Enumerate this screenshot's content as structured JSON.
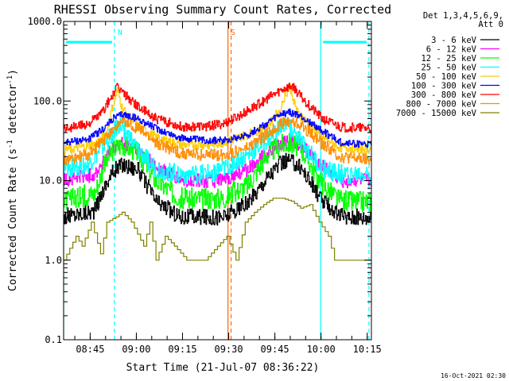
{
  "chart_data": {
    "type": "line",
    "title": "RHESSI Observing Summary Count Rates, Corrected",
    "xlabel": "Start Time (21-Jul-07 08:36:22)",
    "ylabel": "Corrected Count Rate (s^-1 detector^-1)",
    "ylabel_parts": [
      "Corrected Count Rate (s",
      "-1",
      " detector",
      "-1",
      ")"
    ],
    "y_scale": "log",
    "ylim": [
      0.1,
      1000
    ],
    "xlim_minutes": [
      0,
      100
    ],
    "x_origin": "21-Jul-07 08:36:22",
    "x_ticks": [
      {
        "label": "08:45",
        "minute": 8.63
      },
      {
        "label": "09:00",
        "minute": 23.63
      },
      {
        "label": "09:15",
        "minute": 38.63
      },
      {
        "label": "09:30",
        "minute": 53.63
      },
      {
        "label": "09:45",
        "minute": 68.63
      },
      {
        "label": "10:00",
        "minute": 83.63
      },
      {
        "label": "10:15",
        "minute": 98.63
      }
    ],
    "y_ticks": [
      {
        "label": "0.1",
        "value": 0.1
      },
      {
        "label": "1.0",
        "value": 1
      },
      {
        "label": "10.0",
        "value": 10
      },
      {
        "label": "100.0",
        "value": 100
      },
      {
        "label": "1000.0",
        "value": 1000
      }
    ],
    "legend_header": [
      "Det 1,3,4,5,6,9,",
      "Att 0"
    ],
    "legend_position": "right",
    "series": [
      {
        "name": "3 - 6 keV",
        "color": "#000000",
        "minutes": [
          0,
          10,
          13,
          16,
          19,
          24,
          30,
          38,
          46,
          52,
          60,
          66,
          70,
          73,
          77,
          84,
          90,
          100
        ],
        "values": [
          3.5,
          4.2,
          8,
          13,
          16,
          14,
          5.5,
          3.5,
          3.5,
          3.5,
          5.2,
          11,
          16,
          18,
          15,
          5.5,
          3.5,
          3.5
        ]
      },
      {
        "name": "6 - 12 keV",
        "color": "#ff00ff",
        "minutes": [
          0,
          10,
          13,
          16,
          19,
          24,
          30,
          38,
          46,
          52,
          60,
          66,
          70,
          73,
          77,
          84,
          90,
          100
        ],
        "values": [
          10,
          12,
          18,
          26,
          29,
          25,
          15,
          10,
          10,
          10,
          14,
          23,
          29,
          31,
          28,
          15,
          10,
          10
        ]
      },
      {
        "name": "12 - 25 keV",
        "color": "#00ff00",
        "minutes": [
          0,
          10,
          13,
          16,
          19,
          24,
          30,
          38,
          46,
          52,
          60,
          66,
          70,
          73,
          77,
          84,
          90,
          100
        ],
        "values": [
          5.5,
          7,
          15,
          25,
          29,
          23,
          10,
          6,
          6,
          6,
          9,
          21,
          28,
          30,
          26,
          9,
          5.5,
          5.5
        ]
      },
      {
        "name": "25 - 50 keV",
        "color": "#00ffff",
        "minutes": [
          0,
          8,
          13,
          16,
          18,
          20,
          24,
          30,
          38,
          46,
          52,
          60,
          66,
          70,
          72,
          74,
          78,
          84,
          90,
          100
        ],
        "values": [
          14,
          16,
          27,
          40,
          50,
          42,
          24,
          14,
          12,
          12,
          14,
          21,
          32,
          45,
          52,
          44,
          27,
          14,
          12,
          12
        ]
      },
      {
        "name": "50 - 100 keV",
        "color": "#ffcc00",
        "minutes": [
          0,
          10,
          14,
          16,
          17.5,
          19,
          24,
          30,
          38,
          46,
          52,
          60,
          66,
          70,
          72,
          73.5,
          76,
          84,
          90,
          100
        ],
        "values": [
          24,
          28,
          40,
          90,
          135,
          80,
          48,
          35,
          28,
          28,
          30,
          38,
          48,
          75,
          120,
          150,
          70,
          35,
          26,
          25
        ]
      },
      {
        "name": "100 - 300 keV",
        "color": "#0000ff",
        "minutes": [
          0,
          8,
          13,
          16,
          19,
          24,
          30,
          38,
          46,
          52,
          60,
          66,
          70,
          73,
          77,
          84,
          90,
          100
        ],
        "values": [
          30,
          33,
          45,
          60,
          68,
          60,
          45,
          34,
          32,
          32,
          38,
          52,
          66,
          73,
          64,
          42,
          30,
          28
        ]
      },
      {
        "name": "300 - 800 keV",
        "color": "#ff0000",
        "minutes": [
          0,
          8,
          12,
          14,
          16,
          17.5,
          19,
          22,
          26,
          30,
          38,
          46,
          52,
          58,
          64,
          68,
          71,
          73,
          74.5,
          76,
          80,
          84,
          90,
          100
        ],
        "values": [
          45,
          52,
          68,
          90,
          120,
          150,
          130,
          100,
          75,
          60,
          48,
          48,
          52,
          68,
          95,
          118,
          140,
          150,
          155,
          125,
          85,
          60,
          47,
          45
        ]
      },
      {
        "name": "800 - 7000 keV",
        "color": "#ff8c00",
        "minutes": [
          0,
          8,
          13,
          16,
          19,
          24,
          30,
          38,
          46,
          52,
          60,
          66,
          70,
          73,
          77,
          84,
          90,
          100
        ],
        "values": [
          18,
          21,
          32,
          45,
          54,
          46,
          30,
          22,
          21,
          21,
          26,
          38,
          50,
          56,
          50,
          29,
          20,
          18
        ]
      },
      {
        "name": "7000 - 15000 keV",
        "color": "#808000",
        "minutes": [
          0,
          4,
          6,
          9,
          12,
          14,
          17,
          19,
          22,
          26,
          28,
          30,
          33,
          36,
          40,
          46,
          50,
          53,
          56,
          59,
          62,
          65,
          68,
          71,
          74,
          77,
          80,
          83,
          86,
          88,
          90,
          94,
          100
        ],
        "values": [
          1,
          2,
          1.5,
          3,
          1.2,
          3,
          3.5,
          4,
          3,
          1.5,
          3,
          1,
          2,
          1.5,
          1,
          1,
          1.5,
          2,
          1,
          3,
          4,
          5,
          6,
          6,
          5.5,
          4.5,
          5,
          3,
          2,
          1,
          1,
          1,
          1
        ]
      }
    ],
    "annotations": [
      {
        "text": "N",
        "color": "#00ffff",
        "minute": 16.5
      },
      {
        "text": "S",
        "color": "#ff6600",
        "minute": 53.2
      }
    ],
    "vertical_lines": [
      {
        "minute": 0,
        "color": "#00ffff",
        "style": "solid"
      },
      {
        "minute": 16.5,
        "color": "#00ffff",
        "style": "dashed"
      },
      {
        "minute": 53.4,
        "color": "#ff6600",
        "style": "solid"
      },
      {
        "minute": 54.4,
        "color": "#ff6600",
        "style": "dashed"
      },
      {
        "minute": 83.5,
        "color": "#00ffff",
        "style": "solid"
      },
      {
        "minute": 99.2,
        "color": "#00ffff",
        "style": "dashed"
      }
    ],
    "night_bars": [
      {
        "minutes": [
          0,
          16.5
        ],
        "value": 550,
        "color": "#00ffff"
      },
      {
        "minutes": [
          83.5,
          99.2
        ],
        "value": 550,
        "color": "#00ffff"
      }
    ],
    "grid": false
  },
  "footer": {
    "timestamp": "16-Oct-2021 02:30"
  }
}
